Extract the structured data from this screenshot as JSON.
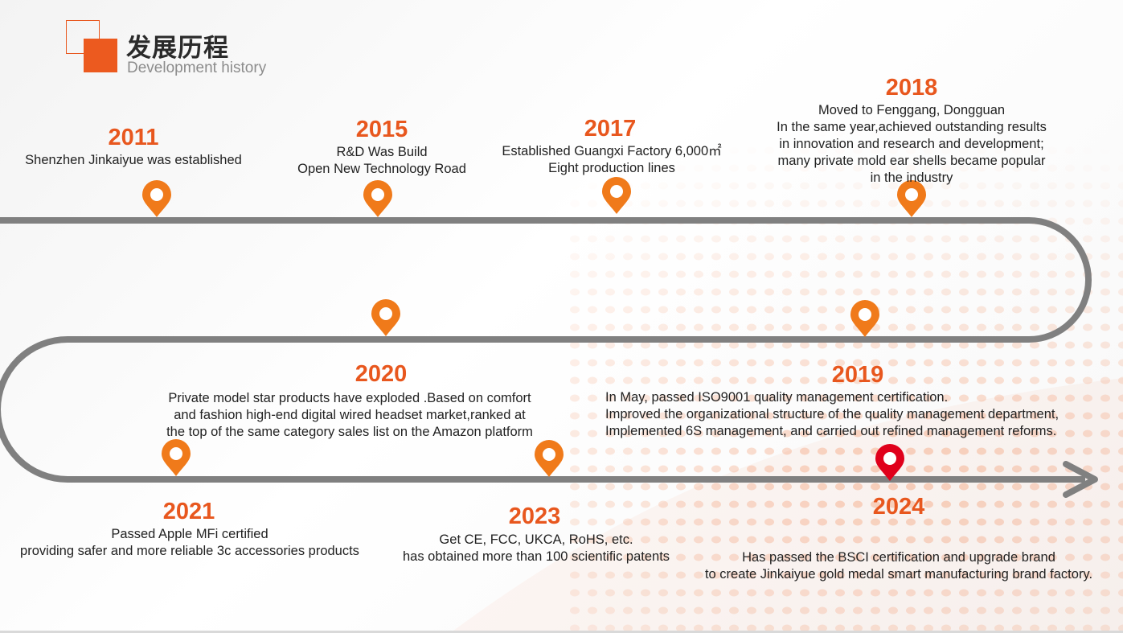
{
  "header": {
    "title_cn": "发展历程",
    "title_en": "Development history"
  },
  "colors": {
    "accent": "#e8571e",
    "pin_orange": "#f07a1a",
    "pin_red": "#e0001b",
    "track": "#808080",
    "text": "#222222"
  },
  "icons": {
    "pin": "location-pin-icon",
    "arrow": "arrow-head-icon"
  },
  "milestones": [
    {
      "year": "2011",
      "lines": [
        "Shenzhen Jinkaiyue  was established"
      ]
    },
    {
      "year": "2015",
      "lines": [
        "R&D Was Build",
        "Open New Technology Road"
      ]
    },
    {
      "year": "2017",
      "lines": [
        "Established Guangxi Factory 6,000㎡",
        "Eight production lines"
      ]
    },
    {
      "year": "2018",
      "lines": [
        "Moved to Fenggang, Dongguan",
        "In the same year,achieved outstanding results",
        "in innovation and research and development;",
        "many private mold ear shells became popular",
        "in the industry"
      ]
    },
    {
      "year": "2019",
      "lines": [
        "In May, passed ISO9001 quality management certification.",
        "Improved the organizational structure of the quality management department,",
        "Implemented 6S management, and carried out refined management reforms."
      ]
    },
    {
      "year": "2020",
      "lines": [
        "Private model star products have exploded .Based on comfort",
        "and fashion high-end digital wired headset market,ranked at",
        "the top of the same category sales list on the Amazon platform"
      ]
    },
    {
      "year": "2021",
      "lines": [
        "Passed Apple MFi certified",
        "providing  safer and more reliable 3c accessories products"
      ]
    },
    {
      "year": "2023",
      "lines": [
        "Get CE, FCC, UKCA, RoHS, etc.",
        "has obtained more than 100 scientific patents"
      ]
    },
    {
      "year": "2024",
      "lines": [
        "Has passed the BSCI certification and upgrade brand",
        "to create Jinkaiyue gold medal smart manufacturing brand factory."
      ]
    }
  ]
}
